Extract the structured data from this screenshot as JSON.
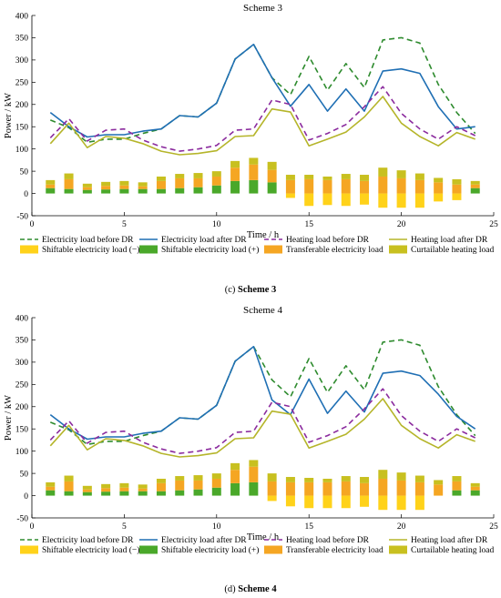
{
  "chart_data": [
    {
      "type": "line",
      "title": "Scheme 3",
      "caption_letter": "(c)",
      "caption_text": " Scheme 3",
      "xlabel": "Time / h",
      "ylabel": "Power / kW",
      "xlim": [
        0,
        25
      ],
      "ylim": [
        -50,
        400
      ],
      "xticks": [
        0,
        5,
        10,
        15,
        20,
        25
      ],
      "yticks": [
        -50,
        0,
        50,
        100,
        150,
        200,
        250,
        300,
        350,
        400
      ],
      "x": [
        1,
        2,
        3,
        4,
        5,
        6,
        7,
        8,
        9,
        10,
        11,
        12,
        13,
        14,
        15,
        16,
        17,
        18,
        19,
        20,
        21,
        22,
        23,
        24
      ],
      "series": [
        {
          "name": "Electricity load before DR",
          "color": "#2e8b2e",
          "style": "dashed",
          "values": [
            165,
            148,
            115,
            122,
            122,
            135,
            145,
            175,
            172,
            203,
            302,
            335,
            260,
            222,
            308,
            232,
            292,
            238,
            345,
            350,
            338,
            245,
            182,
            135
          ]
        },
        {
          "name": "Electricity load after DR",
          "color": "#1f6fb4",
          "style": "solid",
          "values": [
            182,
            150,
            127,
            132,
            132,
            140,
            145,
            175,
            172,
            203,
            302,
            335,
            260,
            196,
            245,
            185,
            235,
            185,
            275,
            280,
            270,
            195,
            145,
            150
          ]
        },
        {
          "name": "Heating load before DR",
          "color": "#8b2b9e",
          "style": "dashed",
          "values": [
            125,
            168,
            118,
            142,
            145,
            120,
            105,
            95,
            100,
            108,
            142,
            145,
            210,
            200,
            120,
            135,
            155,
            195,
            240,
            180,
            145,
            122,
            150,
            130
          ]
        },
        {
          "name": "Heating load after DR",
          "color": "#b5b52a",
          "style": "solid",
          "values": [
            112,
            158,
            103,
            128,
            124,
            112,
            95,
            87,
            90,
            96,
            128,
            130,
            190,
            183,
            107,
            122,
            138,
            172,
            218,
            158,
            128,
            107,
            137,
            122
          ]
        }
      ],
      "bars": [
        {
          "name": "Shiftable electricity load (+)",
          "color": "#4aa82a",
          "values": [
            12,
            10,
            8,
            9,
            10,
            10,
            10,
            12,
            14,
            18,
            28,
            30,
            25,
            0,
            0,
            0,
            0,
            0,
            0,
            0,
            0,
            0,
            0,
            12
          ]
        },
        {
          "name": "Transferable electricity load",
          "color": "#f5a623",
          "values": [
            8,
            22,
            6,
            8,
            8,
            6,
            18,
            22,
            20,
            20,
            30,
            35,
            28,
            30,
            32,
            30,
            32,
            28,
            38,
            34,
            30,
            25,
            20,
            8
          ]
        },
        {
          "name": "Curtailable heating load",
          "color": "#c8c020",
          "values": [
            10,
            13,
            8,
            9,
            10,
            9,
            10,
            10,
            12,
            12,
            15,
            15,
            18,
            12,
            10,
            8,
            12,
            14,
            20,
            18,
            15,
            10,
            12,
            8
          ]
        },
        {
          "name": "Shiftable electricity load (−)",
          "color": "#ffd21a",
          "values": [
            0,
            0,
            0,
            0,
            0,
            0,
            0,
            0,
            0,
            0,
            0,
            0,
            0,
            -10,
            -28,
            -26,
            -28,
            -25,
            -32,
            -32,
            -32,
            -18,
            -15,
            0
          ]
        }
      ]
    },
    {
      "type": "line",
      "title": "Scheme 4",
      "caption_letter": "(d)",
      "caption_text": " Scheme 4",
      "xlabel": "Time / h",
      "ylabel": "Power / kW",
      "xlim": [
        0,
        25
      ],
      "ylim": [
        -50,
        400
      ],
      "xticks": [
        0,
        5,
        10,
        15,
        20,
        25
      ],
      "yticks": [
        -50,
        0,
        50,
        100,
        150,
        200,
        250,
        300,
        350,
        400
      ],
      "x": [
        1,
        2,
        3,
        4,
        5,
        6,
        7,
        8,
        9,
        10,
        11,
        12,
        13,
        14,
        15,
        16,
        17,
        18,
        19,
        20,
        21,
        22,
        23,
        24
      ],
      "series": [
        {
          "name": "Electricity load before DR",
          "color": "#2e8b2e",
          "style": "dashed",
          "values": [
            165,
            148,
            115,
            122,
            122,
            135,
            145,
            175,
            172,
            203,
            302,
            335,
            260,
            222,
            308,
            232,
            292,
            238,
            345,
            350,
            338,
            245,
            182,
            135
          ]
        },
        {
          "name": "Electricity load after DR",
          "color": "#1f6fb4",
          "style": "solid",
          "values": [
            182,
            150,
            127,
            132,
            132,
            140,
            145,
            175,
            172,
            203,
            302,
            335,
            215,
            182,
            262,
            185,
            235,
            188,
            275,
            280,
            270,
            228,
            178,
            150
          ]
        },
        {
          "name": "Heating load before DR",
          "color": "#8b2b9e",
          "style": "dashed",
          "values": [
            125,
            168,
            118,
            142,
            145,
            120,
            105,
            95,
            100,
            108,
            142,
            145,
            210,
            200,
            120,
            135,
            155,
            195,
            240,
            180,
            145,
            122,
            150,
            130
          ]
        },
        {
          "name": "Heating load after DR",
          "color": "#b5b52a",
          "style": "solid",
          "values": [
            112,
            158,
            103,
            128,
            124,
            112,
            95,
            87,
            90,
            96,
            128,
            130,
            190,
            183,
            107,
            122,
            138,
            172,
            218,
            158,
            128,
            107,
            137,
            122
          ]
        }
      ],
      "bars": [
        {
          "name": "Shiftable electricity load (+)",
          "color": "#4aa82a",
          "values": [
            12,
            10,
            8,
            9,
            10,
            10,
            10,
            12,
            14,
            18,
            28,
            30,
            0,
            0,
            0,
            0,
            0,
            0,
            0,
            0,
            0,
            0,
            12,
            12
          ]
        },
        {
          "name": "Transferable electricity load",
          "color": "#f5a623",
          "values": [
            8,
            22,
            6,
            8,
            8,
            6,
            18,
            22,
            20,
            20,
            30,
            35,
            32,
            30,
            30,
            30,
            32,
            28,
            38,
            34,
            30,
            25,
            20,
            8
          ]
        },
        {
          "name": "Curtailable heating load",
          "color": "#c8c020",
          "values": [
            10,
            13,
            8,
            9,
            10,
            9,
            10,
            10,
            12,
            12,
            15,
            15,
            18,
            12,
            10,
            8,
            12,
            14,
            20,
            18,
            15,
            10,
            12,
            8
          ]
        },
        {
          "name": "Shiftable electricity load (−)",
          "color": "#ffd21a",
          "values": [
            0,
            0,
            0,
            0,
            0,
            0,
            0,
            0,
            0,
            0,
            0,
            0,
            -12,
            -24,
            -28,
            -28,
            -28,
            -25,
            -32,
            -32,
            -32,
            0,
            0,
            0
          ]
        }
      ]
    }
  ],
  "legend_order": [
    [
      "Electricity load before DR",
      "Electricity load after DR",
      "Heating load before DR",
      "Heating load after DR"
    ],
    [
      "Shiftable electricity load (−)",
      "Shiftable electricity load (+)",
      "Transferable electricity load",
      "Curtailable heating load"
    ]
  ]
}
